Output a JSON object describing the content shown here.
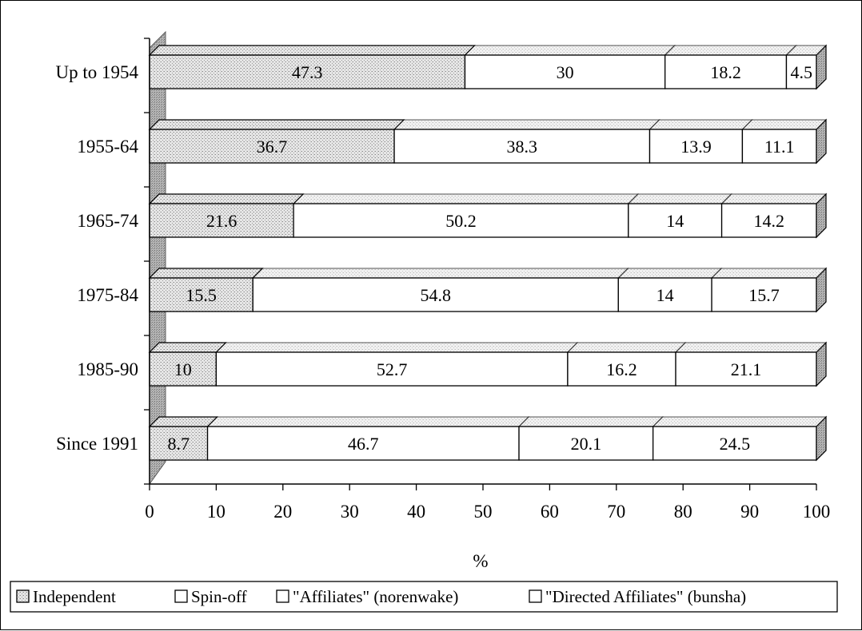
{
  "chart_data": {
    "type": "bar",
    "orientation": "horizontal",
    "stacked": true,
    "style": "3d",
    "title": "",
    "xlabel": "%",
    "ylabel": "",
    "xlim": [
      0,
      100
    ],
    "xticks": [
      "0",
      "10",
      "20",
      "30",
      "40",
      "50",
      "60",
      "70",
      "80",
      "90",
      "100"
    ],
    "categories": [
      "Up to 1954",
      "1955-64",
      "1965-74",
      "1975-84",
      "1985-90",
      "Since 1991"
    ],
    "series": [
      {
        "name": "Independent",
        "color": "#d4d4d4",
        "pattern": "stipple",
        "values": [
          47.3,
          36.7,
          21.6,
          15.5,
          10,
          8.7
        ],
        "labels": [
          "47.3",
          "36.7",
          "21.6",
          "15.5",
          "10",
          "8.7"
        ]
      },
      {
        "name": "Spin-off",
        "color": "#ffffff",
        "pattern": "none",
        "values": [
          30,
          38.3,
          50.2,
          54.8,
          52.7,
          46.7
        ],
        "labels": [
          "30",
          "38.3",
          "50.2",
          "54.8",
          "52.7",
          "46.7"
        ]
      },
      {
        "name": "\"Affiliates\" (norenwake)",
        "color": "#ffffff",
        "pattern": "none",
        "values": [
          18.2,
          13.9,
          14,
          14,
          16.2,
          20.1
        ],
        "labels": [
          "18.2",
          "13.9",
          "14",
          "14",
          "16.2",
          "20.1"
        ]
      },
      {
        "name": "\"Directed Affiliates\" (bunsha)",
        "color": "#ffffff",
        "pattern": "none",
        "values": [
          4.5,
          11.1,
          14.2,
          15.7,
          21.1,
          24.5
        ],
        "labels": [
          "4.5",
          "11.1",
          "14.2",
          "15.7",
          "21.1",
          "24.5"
        ]
      }
    ],
    "legend_position": "bottom",
    "grid": false
  }
}
